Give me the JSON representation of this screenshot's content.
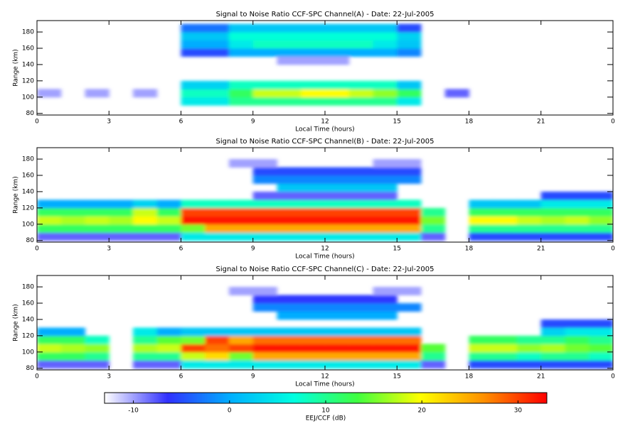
{
  "chart_data": [
    {
      "type": "heatmap",
      "title": "Signal to Noise Ratio CCF-SPC Channel(A) - Date: 22-Jul-2005",
      "xlabel": "Local Time (hours)",
      "ylabel": "Range (km)",
      "xlim": [
        0,
        24
      ],
      "xticks": [
        0,
        3,
        6,
        9,
        12,
        15,
        18,
        21,
        {
          "value": 24,
          "label": "0"
        }
      ],
      "ylim": [
        78,
        194
      ],
      "yticks": [
        80,
        100,
        120,
        140,
        160,
        180
      ],
      "xbins": [
        0,
        1,
        2,
        3,
        4,
        5,
        6,
        7,
        8,
        9,
        10,
        11,
        12,
        13,
        14,
        15,
        16,
        17,
        18,
        19,
        20,
        21,
        22,
        23,
        24
      ],
      "ybins": [
        80,
        90,
        100,
        110,
        120,
        130,
        140,
        150,
        160,
        170,
        180,
        190
      ],
      "z": [
        [
          null,
          null,
          null,
          null,
          null,
          null,
          null,
          null,
          null,
          null,
          null,
          null,
          null,
          null,
          null,
          null,
          null,
          null,
          null,
          null,
          null,
          null,
          null,
          null
        ],
        [
          null,
          null,
          null,
          null,
          null,
          null,
          5,
          5,
          10,
          10,
          10,
          10,
          10,
          10,
          10,
          5,
          null,
          null,
          null,
          null,
          null,
          null,
          null,
          null
        ],
        [
          -10,
          null,
          -10,
          null,
          -10,
          null,
          8,
          8,
          12,
          18,
          18,
          20,
          20,
          18,
          16,
          12,
          null,
          -8,
          null,
          null,
          null,
          null,
          null,
          null
        ],
        [
          null,
          null,
          null,
          null,
          null,
          null,
          3,
          3,
          8,
          8,
          8,
          8,
          8,
          8,
          8,
          2,
          null,
          null,
          null,
          null,
          null,
          null,
          null,
          null
        ],
        [
          null,
          null,
          null,
          null,
          null,
          null,
          null,
          null,
          null,
          null,
          null,
          null,
          null,
          null,
          null,
          null,
          null,
          null,
          null,
          null,
          null,
          null,
          null,
          null
        ],
        [
          null,
          null,
          null,
          null,
          null,
          null,
          null,
          null,
          null,
          null,
          null,
          null,
          null,
          null,
          null,
          null,
          null,
          null,
          null,
          null,
          null,
          null,
          null,
          null
        ],
        [
          null,
          null,
          null,
          null,
          null,
          null,
          null,
          null,
          null,
          null,
          -10,
          -10,
          -10,
          null,
          null,
          null,
          null,
          null,
          null,
          null,
          null,
          null,
          null,
          null
        ],
        [
          null,
          null,
          null,
          null,
          null,
          null,
          -5,
          -5,
          0,
          0,
          0,
          0,
          0,
          0,
          0,
          -2,
          null,
          null,
          null,
          null,
          null,
          null,
          null,
          null
        ],
        [
          null,
          null,
          null,
          null,
          null,
          null,
          0,
          0,
          5,
          8,
          8,
          8,
          8,
          8,
          5,
          2,
          null,
          null,
          null,
          null,
          null,
          null,
          null,
          null
        ],
        [
          null,
          null,
          null,
          null,
          null,
          null,
          2,
          2,
          7,
          7,
          7,
          7,
          7,
          7,
          7,
          3,
          null,
          null,
          null,
          null,
          null,
          null,
          null,
          null
        ],
        [
          null,
          null,
          null,
          null,
          null,
          null,
          -3,
          -3,
          2,
          2,
          2,
          2,
          2,
          2,
          2,
          -5,
          null,
          null,
          null,
          null,
          null,
          null,
          null,
          null
        ]
      ]
    },
    {
      "type": "heatmap",
      "title": "Signal to Noise Ratio CCF-SPC Channel(B) - Date: 22-Jul-2005",
      "xlabel": "Local Time (hours)",
      "ylabel": "Range (km)",
      "xlim": [
        0,
        24
      ],
      "xticks": [
        0,
        3,
        6,
        9,
        12,
        15,
        18,
        21,
        {
          "value": 24,
          "label": "0"
        }
      ],
      "ylim": [
        78,
        194
      ],
      "yticks": [
        80,
        100,
        120,
        140,
        160,
        180
      ],
      "xbins": [
        0,
        1,
        2,
        3,
        4,
        5,
        6,
        7,
        8,
        9,
        10,
        11,
        12,
        13,
        14,
        15,
        16,
        17,
        18,
        19,
        20,
        21,
        22,
        23,
        24
      ],
      "ybins": [
        80,
        90,
        100,
        110,
        120,
        130,
        140,
        150,
        160,
        170,
        180,
        190
      ],
      "z": [
        [
          -8,
          -8,
          -8,
          -8,
          -8,
          -8,
          5,
          5,
          5,
          5,
          5,
          5,
          5,
          5,
          5,
          5,
          -8,
          null,
          -5,
          -5,
          -5,
          -5,
          -5,
          -5
        ],
        [
          12,
          12,
          12,
          12,
          12,
          12,
          15,
          25,
          25,
          25,
          25,
          25,
          25,
          25,
          25,
          25,
          10,
          null,
          10,
          10,
          10,
          10,
          10,
          10
        ],
        [
          18,
          17,
          18,
          17,
          20,
          18,
          32,
          32,
          32,
          32,
          32,
          32,
          32,
          32,
          32,
          32,
          15,
          null,
          20,
          20,
          18,
          17,
          18,
          16
        ],
        [
          12,
          12,
          12,
          12,
          18,
          12,
          30,
          30,
          30,
          30,
          30,
          30,
          30,
          30,
          30,
          30,
          10,
          null,
          12,
          12,
          12,
          12,
          12,
          12
        ],
        [
          0,
          0,
          0,
          0,
          3,
          0,
          8,
          8,
          8,
          8,
          8,
          8,
          8,
          8,
          8,
          8,
          null,
          null,
          2,
          2,
          2,
          5,
          5,
          5
        ],
        [
          null,
          null,
          null,
          null,
          null,
          null,
          null,
          null,
          null,
          -8,
          -8,
          -8,
          -8,
          -8,
          -8,
          null,
          null,
          null,
          null,
          null,
          null,
          -5,
          -5,
          -5
        ],
        [
          null,
          null,
          null,
          null,
          null,
          null,
          null,
          null,
          null,
          null,
          2,
          2,
          2,
          2,
          2,
          null,
          null,
          null,
          null,
          null,
          null,
          null,
          null,
          null
        ],
        [
          null,
          null,
          null,
          null,
          null,
          null,
          null,
          null,
          null,
          -2,
          -2,
          -2,
          -2,
          -2,
          -2,
          -2,
          null,
          null,
          null,
          null,
          null,
          null,
          null,
          null
        ],
        [
          null,
          null,
          null,
          null,
          null,
          null,
          null,
          null,
          null,
          -5,
          -5,
          -5,
          -5,
          -5,
          -5,
          -5,
          null,
          null,
          null,
          null,
          null,
          null,
          null,
          null
        ],
        [
          null,
          null,
          null,
          null,
          null,
          null,
          null,
          null,
          -10,
          -10,
          null,
          null,
          null,
          null,
          -10,
          -10,
          null,
          null,
          null,
          null,
          null,
          null,
          null,
          null
        ],
        [
          null,
          null,
          null,
          null,
          null,
          null,
          null,
          null,
          null,
          null,
          null,
          null,
          null,
          null,
          null,
          null,
          null,
          null,
          null,
          null,
          null,
          null,
          null,
          null
        ]
      ]
    },
    {
      "type": "heatmap",
      "title": "Signal to Noise Ratio CCF-SPC Channel(C) - Date: 22-Jul-2005",
      "xlabel": "Local Time (hours)",
      "ylabel": "Range (km)",
      "xlim": [
        0,
        24
      ],
      "xticks": [
        0,
        3,
        6,
        9,
        12,
        15,
        18,
        21,
        {
          "value": 24,
          "label": "0"
        }
      ],
      "ylim": [
        78,
        194
      ],
      "yticks": [
        80,
        100,
        120,
        140,
        160,
        180
      ],
      "xbins": [
        0,
        1,
        2,
        3,
        4,
        5,
        6,
        7,
        8,
        9,
        10,
        11,
        12,
        13,
        14,
        15,
        16,
        17,
        18,
        19,
        20,
        21,
        22,
        23,
        24
      ],
      "ybins": [
        80,
        90,
        100,
        110,
        120,
        130,
        140,
        150,
        160,
        170,
        180,
        190
      ],
      "z": [
        [
          -8,
          -8,
          -8,
          null,
          -8,
          -8,
          5,
          5,
          5,
          5,
          5,
          5,
          5,
          5,
          5,
          5,
          -8,
          null,
          -5,
          -5,
          -5,
          -5,
          -5,
          -5
        ],
        [
          12,
          12,
          10,
          null,
          10,
          10,
          18,
          22,
          15,
          25,
          25,
          25,
          25,
          25,
          25,
          25,
          10,
          null,
          10,
          10,
          8,
          10,
          10,
          8
        ],
        [
          18,
          17,
          16,
          null,
          17,
          18,
          30,
          28,
          30,
          32,
          32,
          32,
          32,
          32,
          32,
          32,
          14,
          null,
          18,
          18,
          16,
          17,
          15,
          14
        ],
        [
          12,
          12,
          8,
          null,
          10,
          14,
          15,
          30,
          25,
          28,
          28,
          28,
          28,
          28,
          28,
          28,
          null,
          null,
          12,
          12,
          10,
          10,
          12,
          10
        ],
        [
          0,
          0,
          null,
          null,
          5,
          0,
          2,
          2,
          2,
          2,
          2,
          2,
          2,
          2,
          2,
          2,
          null,
          null,
          null,
          null,
          null,
          3,
          5,
          5
        ],
        [
          null,
          null,
          null,
          null,
          null,
          null,
          null,
          null,
          null,
          null,
          null,
          null,
          null,
          null,
          null,
          null,
          null,
          null,
          null,
          null,
          null,
          -5,
          -5,
          -5
        ],
        [
          null,
          null,
          null,
          null,
          null,
          null,
          null,
          null,
          null,
          null,
          0,
          0,
          0,
          0,
          0,
          null,
          null,
          null,
          null,
          null,
          null,
          null,
          null,
          null
        ],
        [
          null,
          null,
          null,
          null,
          null,
          null,
          null,
          null,
          null,
          -2,
          -2,
          -2,
          -2,
          -2,
          -2,
          -2,
          null,
          null,
          null,
          null,
          null,
          null,
          null,
          null
        ],
        [
          null,
          null,
          null,
          null,
          null,
          null,
          null,
          null,
          null,
          -6,
          -6,
          -6,
          -6,
          -6,
          -6,
          null,
          null,
          null,
          null,
          null,
          null,
          null,
          null,
          null
        ],
        [
          null,
          null,
          null,
          null,
          null,
          null,
          null,
          null,
          -10,
          -10,
          null,
          null,
          null,
          null,
          -10,
          -10,
          null,
          null,
          null,
          null,
          null,
          null,
          null,
          null
        ],
        [
          null,
          null,
          null,
          null,
          null,
          null,
          null,
          null,
          null,
          null,
          null,
          null,
          null,
          null,
          null,
          null,
          null,
          null,
          null,
          null,
          null,
          null,
          null,
          null
        ]
      ]
    },
    {
      "type": "colorbar",
      "label": "EEJ/CCF (dB)",
      "zlim": [
        -13,
        33
      ],
      "zticks": [
        -10,
        0,
        10,
        20,
        30
      ],
      "colors": [
        "#ffffff",
        "#3030ff",
        "#00b0ff",
        "#00ffe0",
        "#40ff40",
        "#ffff00",
        "#ff9000",
        "#ff0000"
      ]
    }
  ]
}
